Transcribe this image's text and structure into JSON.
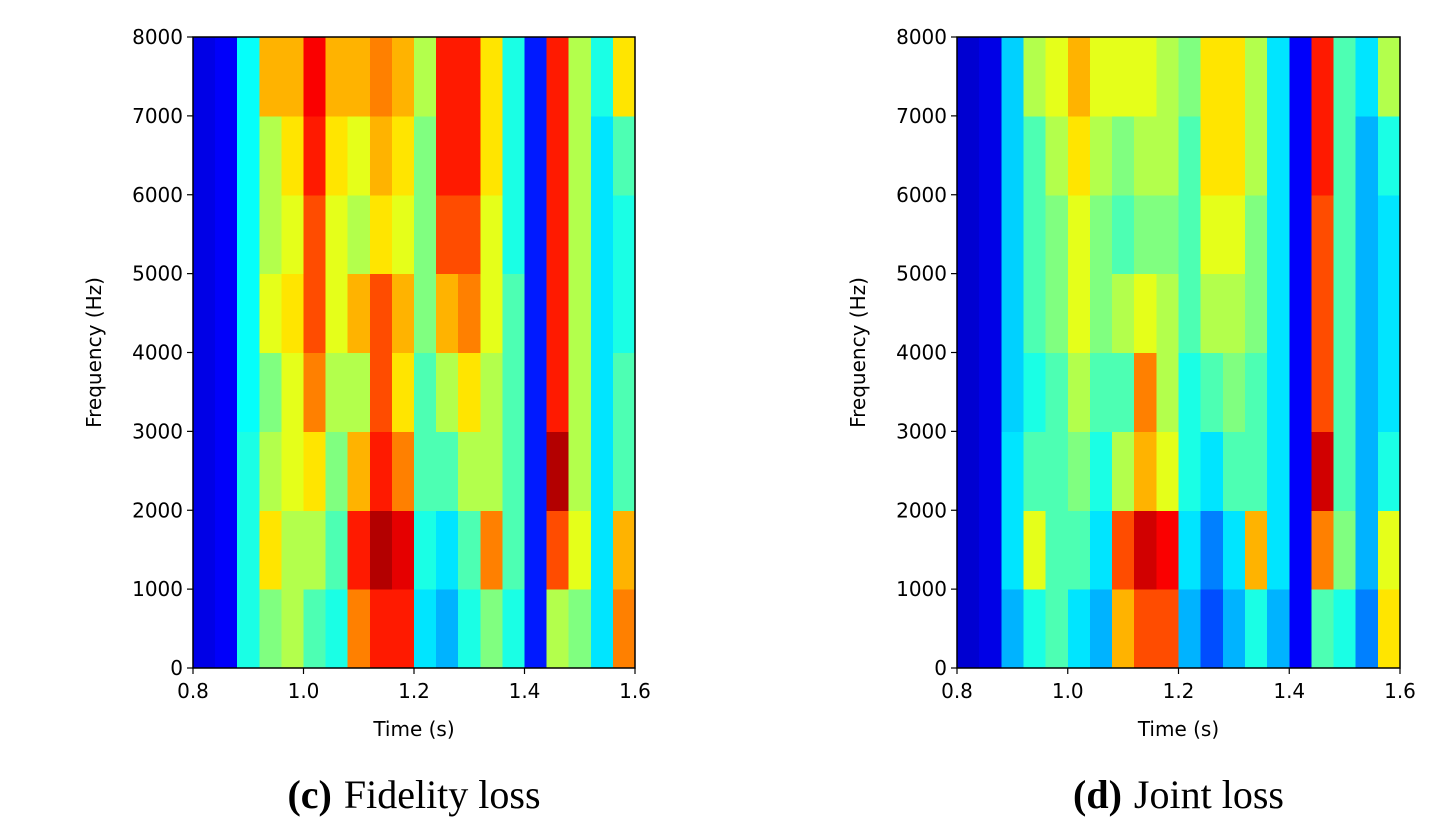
{
  "chart_data": [
    {
      "type": "heatmap",
      "colormap": "jet",
      "zlim": [
        0,
        1
      ],
      "caption_label": "(c)",
      "caption": "Fidelity loss",
      "xlabel": "Time (s)",
      "ylabel": "Frequency (Hz)",
      "xlim": [
        0.8,
        1.6
      ],
      "ylim": [
        0,
        8000
      ],
      "xticks": [
        0.8,
        {
          "value": 1,
          "label": "1.0"
        },
        1.2,
        1.4,
        1.6
      ],
      "yticks": [
        0,
        1000,
        2000,
        3000,
        4000,
        5000,
        6000,
        7000,
        8000
      ],
      "z": [
        [
          0.1,
          0.12,
          0.4,
          0.5,
          0.55,
          0.45,
          0.4,
          0.75,
          0.85,
          0.85,
          0.35,
          0.3,
          0.4,
          0.5,
          0.4,
          0.15,
          0.55,
          0.5,
          0.35,
          0.75
        ],
        [
          0.1,
          0.12,
          0.4,
          0.65,
          0.55,
          0.55,
          0.45,
          0.85,
          0.95,
          0.9,
          0.4,
          0.35,
          0.45,
          0.75,
          0.45,
          0.15,
          0.8,
          0.6,
          0.35,
          0.7
        ],
        [
          0.1,
          0.12,
          0.4,
          0.55,
          0.6,
          0.65,
          0.5,
          0.7,
          0.85,
          0.75,
          0.45,
          0.45,
          0.55,
          0.55,
          0.45,
          0.15,
          0.95,
          0.55,
          0.35,
          0.45
        ],
        [
          0.1,
          0.12,
          0.38,
          0.5,
          0.6,
          0.75,
          0.55,
          0.55,
          0.8,
          0.65,
          0.45,
          0.55,
          0.65,
          0.55,
          0.45,
          0.15,
          0.85,
          0.55,
          0.35,
          0.45
        ],
        [
          0.1,
          0.12,
          0.38,
          0.6,
          0.65,
          0.8,
          0.6,
          0.7,
          0.8,
          0.7,
          0.5,
          0.7,
          0.75,
          0.6,
          0.45,
          0.15,
          0.85,
          0.55,
          0.35,
          0.4
        ],
        [
          0.1,
          0.12,
          0.38,
          0.55,
          0.6,
          0.8,
          0.6,
          0.55,
          0.65,
          0.6,
          0.5,
          0.8,
          0.8,
          0.6,
          0.4,
          0.15,
          0.85,
          0.55,
          0.35,
          0.4
        ],
        [
          0.1,
          0.12,
          0.38,
          0.55,
          0.65,
          0.85,
          0.65,
          0.6,
          0.7,
          0.65,
          0.5,
          0.85,
          0.85,
          0.65,
          0.4,
          0.15,
          0.85,
          0.55,
          0.35,
          0.45
        ],
        [
          0.1,
          0.12,
          0.38,
          0.7,
          0.7,
          0.88,
          0.7,
          0.7,
          0.75,
          0.7,
          0.55,
          0.85,
          0.85,
          0.65,
          0.4,
          0.15,
          0.85,
          0.55,
          0.4,
          0.65
        ]
      ]
    },
    {
      "type": "heatmap",
      "colormap": "jet",
      "zlim": [
        0,
        1
      ],
      "caption_label": "(d)",
      "caption": "Joint loss",
      "xlabel": "Time (s)",
      "ylabel": "Frequency (Hz)",
      "xlim": [
        0.8,
        1.6
      ],
      "ylim": [
        0,
        8000
      ],
      "xticks": [
        0.8,
        {
          "value": 1,
          "label": "1.0"
        },
        1.2,
        1.4,
        1.6
      ],
      "yticks": [
        0,
        1000,
        2000,
        3000,
        4000,
        5000,
        6000,
        7000,
        8000
      ],
      "z": [
        [
          0.08,
          0.1,
          0.3,
          0.4,
          0.45,
          0.35,
          0.3,
          0.7,
          0.8,
          0.8,
          0.3,
          0.2,
          0.3,
          0.4,
          0.3,
          0.12,
          0.45,
          0.4,
          0.25,
          0.65
        ],
        [
          0.08,
          0.1,
          0.35,
          0.6,
          0.45,
          0.45,
          0.35,
          0.8,
          0.92,
          0.88,
          0.35,
          0.25,
          0.35,
          0.7,
          0.35,
          0.12,
          0.75,
          0.5,
          0.3,
          0.6
        ],
        [
          0.08,
          0.1,
          0.35,
          0.45,
          0.45,
          0.5,
          0.4,
          0.55,
          0.7,
          0.6,
          0.4,
          0.35,
          0.45,
          0.45,
          0.35,
          0.12,
          0.92,
          0.45,
          0.3,
          0.4
        ],
        [
          0.08,
          0.1,
          0.33,
          0.4,
          0.45,
          0.55,
          0.45,
          0.45,
          0.75,
          0.55,
          0.4,
          0.45,
          0.5,
          0.45,
          0.35,
          0.12,
          0.8,
          0.45,
          0.3,
          0.35
        ],
        [
          0.08,
          0.1,
          0.33,
          0.45,
          0.5,
          0.6,
          0.5,
          0.55,
          0.6,
          0.55,
          0.45,
          0.55,
          0.55,
          0.5,
          0.35,
          0.12,
          0.8,
          0.45,
          0.3,
          0.35
        ],
        [
          0.08,
          0.1,
          0.33,
          0.45,
          0.5,
          0.6,
          0.5,
          0.45,
          0.5,
          0.5,
          0.45,
          0.6,
          0.6,
          0.5,
          0.35,
          0.12,
          0.8,
          0.45,
          0.3,
          0.35
        ],
        [
          0.08,
          0.1,
          0.33,
          0.45,
          0.55,
          0.65,
          0.55,
          0.5,
          0.55,
          0.55,
          0.45,
          0.65,
          0.65,
          0.55,
          0.35,
          0.12,
          0.85,
          0.45,
          0.3,
          0.4
        ],
        [
          0.08,
          0.1,
          0.33,
          0.55,
          0.6,
          0.7,
          0.6,
          0.6,
          0.6,
          0.55,
          0.5,
          0.65,
          0.65,
          0.55,
          0.35,
          0.12,
          0.85,
          0.45,
          0.35,
          0.55
        ]
      ]
    }
  ]
}
